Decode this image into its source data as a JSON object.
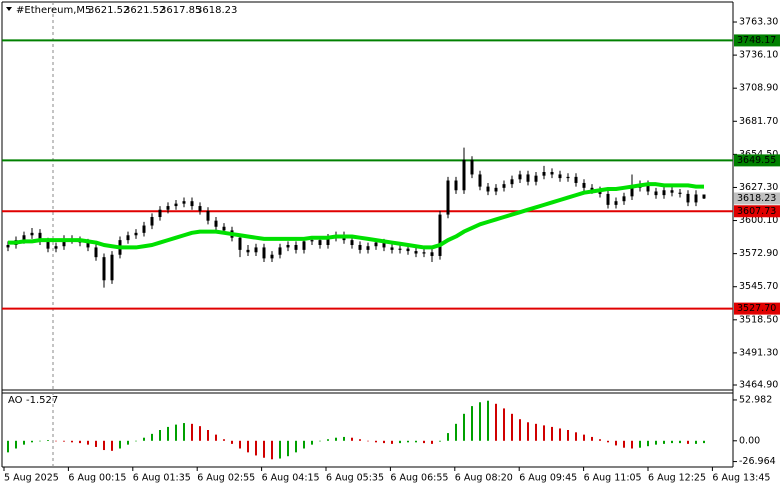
{
  "chart_data": {
    "type": "candlestick",
    "symbol": "#Ethereum,M5",
    "ylim": [
      3460.8,
      3781.4
    ],
    "yticks": [
      {
        "value": 3763.3,
        "label": "3763.30"
      },
      {
        "value": 3736.1,
        "label": "3736.10"
      },
      {
        "value": 3708.9,
        "label": "3708.90"
      },
      {
        "value": 3681.7,
        "label": "3681.70"
      },
      {
        "value": 3654.5,
        "label": "3654.50"
      },
      {
        "value": 3627.3,
        "label": "3627.30"
      },
      {
        "value": 3600.1,
        "label": "3600.10"
      },
      {
        "value": 3572.9,
        "label": "3572.90"
      },
      {
        "value": 3545.7,
        "label": "3545.70"
      },
      {
        "value": 3518.5,
        "label": "3518.50"
      },
      {
        "value": 3491.3,
        "label": "3491.30"
      },
      {
        "value": 3464.9,
        "label": "3464.90"
      }
    ],
    "candle_color": "#000000",
    "candles": [
      [
        3578,
        3583,
        3575,
        3580
      ],
      [
        3580,
        3587,
        3577,
        3584
      ],
      [
        3584,
        3591,
        3581,
        3588
      ],
      [
        3588,
        3594,
        3585,
        3590
      ],
      [
        3590,
        3593,
        3580,
        3583
      ],
      [
        3583,
        3586,
        3574,
        3577
      ],
      [
        3577,
        3582,
        3574,
        3579
      ],
      [
        3579,
        3588,
        3576,
        3585
      ],
      [
        3585,
        3588,
        3581,
        3584
      ],
      [
        3584,
        3587,
        3579,
        3582
      ],
      [
        3582,
        3585,
        3575,
        3578
      ],
      [
        3578,
        3581,
        3567,
        3570
      ],
      [
        3570,
        3573,
        3545,
        3551
      ],
      [
        3551,
        3575,
        3548,
        3572
      ],
      [
        3572,
        3587,
        3569,
        3584
      ],
      [
        3584,
        3591,
        3581,
        3588
      ],
      [
        3588,
        3593,
        3585,
        3590
      ],
      [
        3590,
        3599,
        3587,
        3596
      ],
      [
        3596,
        3606,
        3593,
        3603
      ],
      [
        3603,
        3612,
        3600,
        3609
      ],
      [
        3609,
        3615,
        3606,
        3612
      ],
      [
        3612,
        3617,
        3609,
        3614
      ],
      [
        3614,
        3619,
        3611,
        3616
      ],
      [
        3616,
        3619,
        3609,
        3612
      ],
      [
        3612,
        3615,
        3605,
        3608
      ],
      [
        3608,
        3611,
        3597,
        3600
      ],
      [
        3600,
        3603,
        3592,
        3595
      ],
      [
        3595,
        3598,
        3589,
        3592
      ],
      [
        3592,
        3595,
        3583,
        3586
      ],
      [
        3586,
        3589,
        3570,
        3576
      ],
      [
        3576,
        3580,
        3571,
        3574
      ],
      [
        3574,
        3581,
        3571,
        3578
      ],
      [
        3578,
        3581,
        3566,
        3569
      ],
      [
        3569,
        3575,
        3566,
        3572
      ],
      [
        3572,
        3581,
        3569,
        3578
      ],
      [
        3578,
        3583,
        3575,
        3580
      ],
      [
        3580,
        3583,
        3573,
        3576
      ],
      [
        3576,
        3586,
        3573,
        3583
      ],
      [
        3583,
        3587,
        3580,
        3584
      ],
      [
        3584,
        3587,
        3577,
        3580
      ],
      [
        3580,
        3589,
        3577,
        3586
      ],
      [
        3586,
        3591,
        3583,
        3588
      ],
      [
        3588,
        3591,
        3581,
        3584
      ],
      [
        3584,
        3587,
        3577,
        3580
      ],
      [
        3580,
        3583,
        3573,
        3576
      ],
      [
        3576,
        3582,
        3573,
        3579
      ],
      [
        3579,
        3585,
        3576,
        3582
      ],
      [
        3582,
        3585,
        3575,
        3578
      ],
      [
        3578,
        3581,
        3573,
        3576
      ],
      [
        3576,
        3580,
        3573,
        3577
      ],
      [
        3577,
        3580,
        3572,
        3575
      ],
      [
        3575,
        3578,
        3570,
        3573
      ],
      [
        3573,
        3577,
        3570,
        3574
      ],
      [
        3574,
        3577,
        3566,
        3571
      ],
      [
        3571,
        3608,
        3568,
        3605
      ],
      [
        3605,
        3636,
        3602,
        3633
      ],
      [
        3633,
        3636,
        3622,
        3625
      ],
      [
        3625,
        3660,
        3622,
        3650
      ],
      [
        3650,
        3653,
        3635,
        3638
      ],
      [
        3638,
        3641,
        3625,
        3628
      ],
      [
        3628,
        3631,
        3621,
        3624
      ],
      [
        3624,
        3630,
        3621,
        3627
      ],
      [
        3627,
        3633,
        3624,
        3630
      ],
      [
        3630,
        3637,
        3627,
        3634
      ],
      [
        3634,
        3641,
        3631,
        3638
      ],
      [
        3638,
        3641,
        3629,
        3632
      ],
      [
        3632,
        3640,
        3629,
        3637
      ],
      [
        3637,
        3645,
        3634,
        3640
      ],
      [
        3640,
        3643,
        3635,
        3638
      ],
      [
        3638,
        3641,
        3632,
        3635
      ],
      [
        3635,
        3639,
        3632,
        3636
      ],
      [
        3636,
        3639,
        3628,
        3631
      ],
      [
        3631,
        3634,
        3624,
        3627
      ],
      [
        3627,
        3630,
        3622,
        3625
      ],
      [
        3625,
        3628,
        3619,
        3622
      ],
      [
        3622,
        3625,
        3610,
        3613
      ],
      [
        3613,
        3619,
        3610,
        3616
      ],
      [
        3616,
        3623,
        3613,
        3620
      ],
      [
        3620,
        3638,
        3617,
        3627
      ],
      [
        3627,
        3633,
        3624,
        3630
      ],
      [
        3630,
        3633,
        3621,
        3624
      ],
      [
        3624,
        3627,
        3618,
        3621
      ],
      [
        3621,
        3628,
        3618,
        3625
      ],
      [
        3625,
        3628,
        3620,
        3623
      ],
      [
        3623,
        3626,
        3619,
        3622
      ],
      [
        3622,
        3625,
        3612,
        3615
      ],
      [
        3615,
        3625,
        3612,
        3621.52
      ],
      [
        3621.52,
        3621.52,
        3617.85,
        3618.23
      ]
    ],
    "ma_color": "#00e000",
    "ma": [
      3582,
      3582,
      3583,
      3583,
      3584,
      3584,
      3584,
      3584,
      3584,
      3584,
      3583,
      3582,
      3580,
      3579,
      3578,
      3578,
      3578,
      3579,
      3580,
      3582,
      3584,
      3586,
      3588,
      3590,
      3591,
      3591,
      3591,
      3590,
      3589,
      3588,
      3587,
      3586,
      3585,
      3585,
      3585,
      3585,
      3585,
      3585,
      3586,
      3586,
      3586,
      3587,
      3587,
      3587,
      3586,
      3585,
      3584,
      3583,
      3582,
      3581,
      3580,
      3579,
      3578,
      3578,
      3580,
      3584,
      3587,
      3591,
      3594,
      3597,
      3599,
      3601,
      3603,
      3605,
      3607,
      3609,
      3611,
      3613,
      3615,
      3617,
      3619,
      3621,
      3623,
      3624,
      3625,
      3626,
      3626,
      3627,
      3628,
      3629,
      3630,
      3630,
      3629,
      3629,
      3629,
      3629,
      3628,
      3628
    ],
    "levels": [
      {
        "value": 3748.17,
        "color": "#008000"
      },
      {
        "value": 3649.55,
        "color": "#008000"
      },
      {
        "value": 3607.73,
        "color": "#e00000"
      },
      {
        "value": 3527.7,
        "label": "3527.70",
        "color": "#e00000"
      }
    ],
    "current_price_color": "#c0c0c0",
    "ao_label": "AO",
    "ao_current": -1.527,
    "ao_ylim": [
      -34,
      62
    ],
    "ao_yticks": [
      52.982,
      {
        "value": 0,
        "label": "0.00"
      },
      -26.964
    ],
    "ao_up_color": "#00a000",
    "ao_down_color": "#d00000",
    "ao": [
      -15,
      -10,
      -5,
      -2,
      0,
      1,
      0,
      -1,
      -2,
      -3,
      -5,
      -8,
      -12,
      -13,
      -10,
      -5,
      0,
      4,
      9,
      14,
      18,
      21,
      23,
      22,
      19,
      14,
      8,
      2,
      -4,
      -10,
      -15,
      -19,
      -22,
      -24,
      -23,
      -20,
      -15,
      -10,
      -5,
      0,
      2,
      4,
      5,
      4,
      2,
      0,
      -2,
      -3,
      -4,
      -3,
      -2,
      -2,
      -3,
      -4,
      -1,
      10,
      22,
      35,
      45,
      50,
      52,
      48,
      42,
      35,
      28,
      24,
      22,
      20,
      18,
      16,
      14,
      11,
      8,
      5,
      2,
      -2,
      -6,
      -9,
      -10,
      -9,
      -7,
      -5,
      -4,
      -3,
      -3,
      -4,
      -4,
      -3
    ],
    "x_tick_labels": [
      "5 Aug 2025",
      "6 Aug 00:15",
      "6 Aug 01:35",
      "6 Aug 02:55",
      "6 Aug 04:15",
      "6 Aug 05:35",
      "6 Aug 06:55",
      "6 Aug 08:20",
      "6 Aug 09:45",
      "6 Aug 11:05",
      "6 Aug 12:25",
      "6 Aug 13:45"
    ]
  }
}
